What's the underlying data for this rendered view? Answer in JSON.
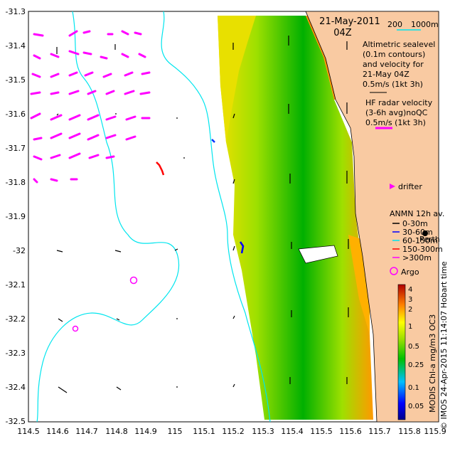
{
  "header": {
    "date": "21-May-2011",
    "time": "04Z",
    "depth_labels": [
      "200",
      "1000m"
    ]
  },
  "legend": {
    "altimetry_lines": [
      "Altimetric sealevel",
      "(0.1m contours)",
      "and velocity for",
      "21-May 04Z",
      "0.5m/s (1kt 3h)"
    ],
    "radar_lines": [
      "HF radar velocity",
      "(3-6h avg)noQC",
      "0.5m/s (1kt 3h)"
    ],
    "drifter": "drifter",
    "anmn_title": "ANMN 12h av.",
    "anmn_depths": [
      "0-30m",
      "30-60m",
      "60-150m",
      "150-300m",
      ">300m"
    ],
    "argo": "Argo",
    "city": "Perth",
    "credit": "© IMOS 24-Apr-2015 11:14:07 Hobart time",
    "colorbar_title": "MODIS Chl-a mg/m3 OC3",
    "colorbar_ticks": [
      "4",
      "3",
      "2",
      "1",
      "0.5",
      "0.25",
      "0.1",
      "0.05"
    ]
  },
  "axes": {
    "x_ticks": [
      "114.5",
      "114.6",
      "114.7",
      "114.8",
      "114.9",
      "115",
      "115.1",
      "115.2",
      "115.3",
      "115.4",
      "115.5",
      "115.6",
      "115.7",
      "115.8",
      "115.9"
    ],
    "y_ticks": [
      "-31.3",
      "-31.4",
      "-31.5",
      "-31.6",
      "-31.7",
      "-31.8",
      "-31.9",
      "-32",
      "-32.1",
      "-32.2",
      "-32.3",
      "-32.4",
      "-32.5"
    ],
    "xlim": [
      114.5,
      115.9
    ],
    "ylim": [
      -32.5,
      -31.3
    ]
  },
  "colors": {
    "land": "#f9caa2",
    "isobath": "#00e5ee",
    "radar": "#ff00ff",
    "chl_high": "#ff4400",
    "chl_mid": "#f0e000",
    "chl_low": "#00b000"
  }
}
